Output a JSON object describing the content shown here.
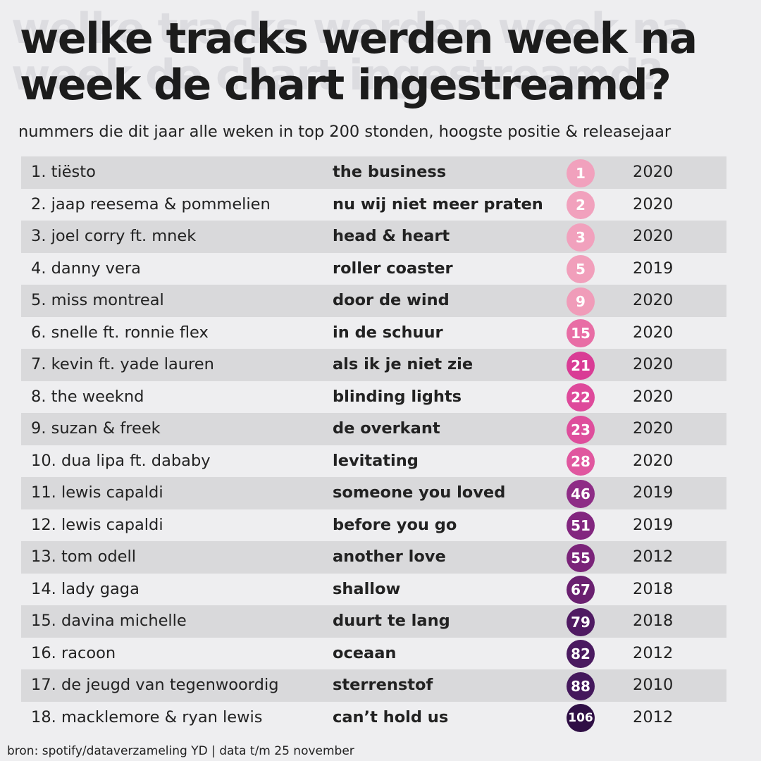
{
  "title_lines": [
    "welke tracks werden week na",
    "week de chart ingestreamd?"
  ],
  "subtitle": "nummers die dit jaar alle weken in top 200 stonden, hoogste positie & releasejaar",
  "source": "bron: spotify/dataverzameling YD | data t/m 25 november",
  "colors": {
    "background": "#eeeef0",
    "row_shade": "#d9d9db",
    "title_shadow": "#dcdce0"
  },
  "chart_data": {
    "type": "table",
    "title": "welke tracks werden week na week de chart ingestreamd?",
    "subtitle": "nummers die dit jaar alle weken in top 200 stonden, hoogste positie & releasejaar",
    "rows": [
      {
        "rank": "1.",
        "artist": "tiësto",
        "track": "the business",
        "peak": 1,
        "year": "2020",
        "color": "#f1a1bd"
      },
      {
        "rank": "2.",
        "artist": "jaap reesema & pommelien",
        "track": "nu wij niet meer praten",
        "peak": 2,
        "year": "2020",
        "color": "#f1a1bd"
      },
      {
        "rank": "3.",
        "artist": "joel corry ft. mnek",
        "track": "head & heart",
        "peak": 3,
        "year": "2020",
        "color": "#f1a1bd"
      },
      {
        "rank": "4.",
        "artist": "danny vera",
        "track": "roller coaster",
        "peak": 5,
        "year": "2019",
        "color": "#f19fbb"
      },
      {
        "rank": "5.",
        "artist": "miss montreal",
        "track": "door de wind",
        "peak": 9,
        "year": "2020",
        "color": "#f09cb9"
      },
      {
        "rank": "6.",
        "artist": "snelle ft. ronnie flex",
        "track": "in de schuur",
        "peak": 15,
        "year": "2020",
        "color": "#e86da5"
      },
      {
        "rank": "7.",
        "artist": "kevin ft. yade lauren",
        "track": "als ik je niet zie",
        "peak": 21,
        "year": "2020",
        "color": "#d93c95"
      },
      {
        "rank": "8.",
        "artist": "the weeknd",
        "track": "blinding lights",
        "peak": 22,
        "year": "2020",
        "color": "#de4a9b"
      },
      {
        "rank": "9.",
        "artist": "suzan & freek",
        "track": "de overkant",
        "peak": 23,
        "year": "2020",
        "color": "#de4e9c"
      },
      {
        "rank": "10.",
        "artist": "dua lipa ft. dababy",
        "track": "levitating",
        "peak": 28,
        "year": "2020",
        "color": "#e0579f"
      },
      {
        "rank": "11.",
        "artist": "lewis capaldi",
        "track": "someone you loved",
        "peak": 46,
        "year": "2019",
        "color": "#8e2c86"
      },
      {
        "rank": "12.",
        "artist": "lewis capaldi",
        "track": "before you go",
        "peak": 51,
        "year": "2019",
        "color": "#82267f"
      },
      {
        "rank": "13.",
        "artist": "tom odell",
        "track": "another love",
        "peak": 55,
        "year": "2012",
        "color": "#7a2379"
      },
      {
        "rank": "14.",
        "artist": "lady gaga",
        "track": "shallow",
        "peak": 67,
        "year": "2018",
        "color": "#6a2070"
      },
      {
        "rank": "15.",
        "artist": "davina michelle",
        "track": "duurt te lang",
        "peak": 79,
        "year": "2018",
        "color": "#4f1a62"
      },
      {
        "rank": "16.",
        "artist": "racoon",
        "track": "oceaan",
        "peak": 82,
        "year": "2012",
        "color": "#4a1a60"
      },
      {
        "rank": "17.",
        "artist": "de jeugd van tegenwoordig",
        "track": "sterrenstof",
        "peak": 88,
        "year": "2010",
        "color": "#44185c"
      },
      {
        "rank": "18.",
        "artist": "macklemore & ryan lewis",
        "track": "can’t hold us",
        "peak": 106,
        "year": "2012",
        "color": "#2f0f45"
      }
    ]
  }
}
